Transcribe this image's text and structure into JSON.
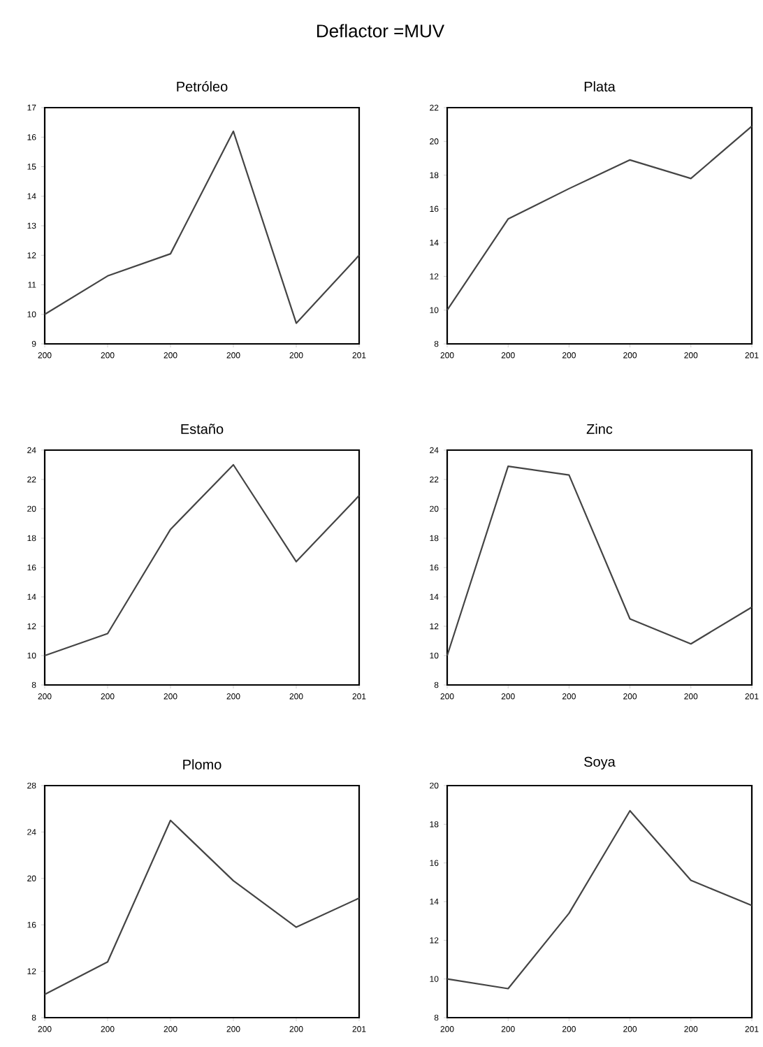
{
  "chart_data": [
    {
      "type": "other",
      "title": "Deflactor =MUV"
    },
    {
      "type": "line",
      "title": "Petróleo",
      "categories": [
        "200",
        "200",
        "200",
        "200",
        "200",
        "201"
      ],
      "values": [
        10,
        11.3,
        12.05,
        16.2,
        9.7,
        12.0
      ],
      "color": "#444444",
      "ylim": [
        9,
        17
      ],
      "yticks": [
        9,
        10,
        11,
        12,
        13,
        14,
        15,
        16,
        17
      ]
    },
    {
      "type": "line",
      "title": "Plata",
      "categories": [
        "200",
        "200",
        "200",
        "200",
        "200",
        "201"
      ],
      "values": [
        10,
        15.4,
        17.2,
        18.9,
        17.8,
        20.9
      ],
      "color": "#444444",
      "ylim": [
        8,
        22
      ],
      "yticks": [
        8,
        10,
        12,
        14,
        16,
        18,
        20,
        22
      ]
    },
    {
      "type": "line",
      "title": "Estaño",
      "categories": [
        "200",
        "200",
        "200",
        "200",
        "200",
        "201"
      ],
      "values": [
        10,
        11.5,
        18.6,
        23.0,
        16.4,
        20.9
      ],
      "color": "#444444",
      "ylim": [
        8,
        24
      ],
      "yticks": [
        8,
        10,
        12,
        14,
        16,
        18,
        20,
        22,
        24
      ]
    },
    {
      "type": "line",
      "title": "Zinc",
      "categories": [
        "200",
        "200",
        "200",
        "200",
        "200",
        "201"
      ],
      "values": [
        10,
        22.9,
        22.3,
        12.5,
        10.8,
        13.3
      ],
      "color": "#444444",
      "ylim": [
        8,
        24
      ],
      "yticks": [
        8,
        10,
        12,
        14,
        16,
        18,
        20,
        22,
        24
      ]
    },
    {
      "type": "line",
      "title": "Plomo",
      "categories": [
        "200",
        "200",
        "200",
        "200",
        "200",
        "201"
      ],
      "values": [
        10,
        12.8,
        25,
        19.8,
        15.8,
        18.3
      ],
      "color": "#444444",
      "ylim": [
        8,
        28
      ],
      "yticks": [
        8,
        12,
        16,
        20,
        24,
        28
      ]
    },
    {
      "type": "line",
      "title": "Soya",
      "categories": [
        "200",
        "200",
        "200",
        "200",
        "200",
        "201"
      ],
      "values": [
        10,
        9.5,
        13.4,
        18.7,
        15.1,
        13.8
      ],
      "color": "#444444",
      "ylim": [
        8,
        20
      ],
      "yticks": [
        8,
        10,
        12,
        14,
        16,
        18,
        20
      ]
    }
  ]
}
